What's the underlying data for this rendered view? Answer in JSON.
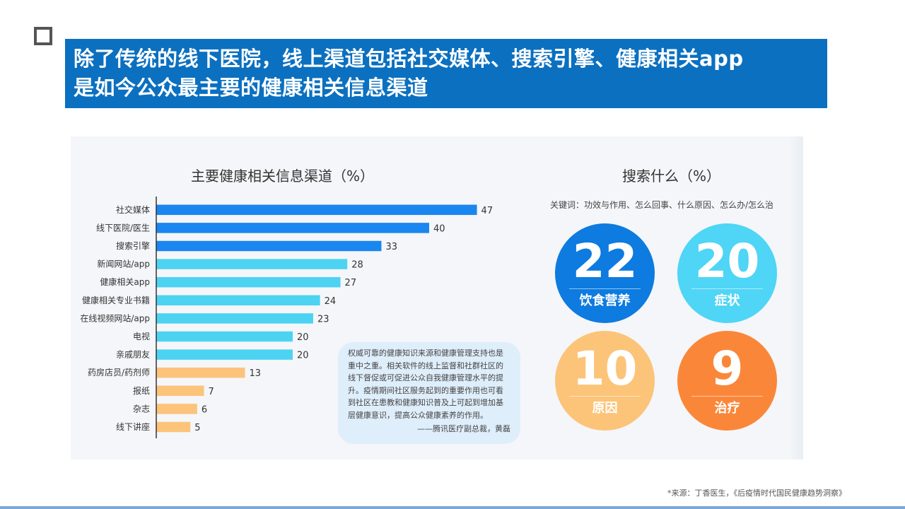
{
  "header": {
    "title_line1": "除了传统的线下医院，线上渠道包括社交媒体、搜索引擎、健康相关app",
    "title_line2": "是如今公众最主要的健康相关信息渠道"
  },
  "colors": {
    "title_band": "#0b70c0",
    "bar_dark_blue": "#1a86f0",
    "bar_light_blue": "#4dd3f2",
    "bar_orange": "#fcc37b",
    "circle_blue": "#0d7be0",
    "circle_cyan": "#4fd5f5",
    "circle_peach": "#fcc479",
    "circle_orange": "#fa8739"
  },
  "chart_data": [
    {
      "type": "bar",
      "orientation": "horizontal",
      "title": "主要健康相关信息渠道（%）",
      "categories": [
        "社交媒体",
        "线下医院/医生",
        "搜索引擎",
        "新闻网站/app",
        "健康相关app",
        "健康相关专业书籍",
        "在线视频网站/app",
        "电视",
        "亲戚朋友",
        "药房店员/药剂师",
        "报纸",
        "杂志",
        "线下讲座"
      ],
      "values": [
        47,
        40,
        33,
        28,
        27,
        24,
        23,
        20,
        20,
        13,
        7,
        6,
        5
      ],
      "bar_colors": [
        "#1a86f0",
        "#1a86f0",
        "#1a86f0",
        "#4dd3f2",
        "#4dd3f2",
        "#4dd3f2",
        "#4dd3f2",
        "#4dd3f2",
        "#4dd3f2",
        "#fcc37b",
        "#fcc37b",
        "#fcc37b",
        "#fcc37b"
      ],
      "data_labels": true,
      "grid": false
    }
  ],
  "search": {
    "title": "搜索什么（%）",
    "keywords": "关键词：功效与作用、怎么回事、什么原因、怎么办/怎么治",
    "circles": [
      {
        "value": "22",
        "label": "饮食营养",
        "color": "#0d7be0"
      },
      {
        "value": "20",
        "label": "症状",
        "color": "#4fd5f5"
      },
      {
        "value": "10",
        "label": "原因",
        "color": "#fcc479"
      },
      {
        "value": "9",
        "label": "治疗",
        "color": "#fa8739"
      }
    ]
  },
  "quote": {
    "text": "权威可靠的健康知识来源和健康管理支持也是重中之重。相关软件的线上监督和社群社区的线下督促或可促进公众自我健康管理水平的提升。疫情期间社区服务起到的重要作用也可看到社区在患教和健康知识普及上可起到增加基层健康意识，提高公众健康素养的作用。",
    "attribution": "——腾讯医疗副总裁，黄磊"
  },
  "footer": {
    "source": "*来源：丁香医生，《后疫情时代国民健康趋势洞察》"
  }
}
